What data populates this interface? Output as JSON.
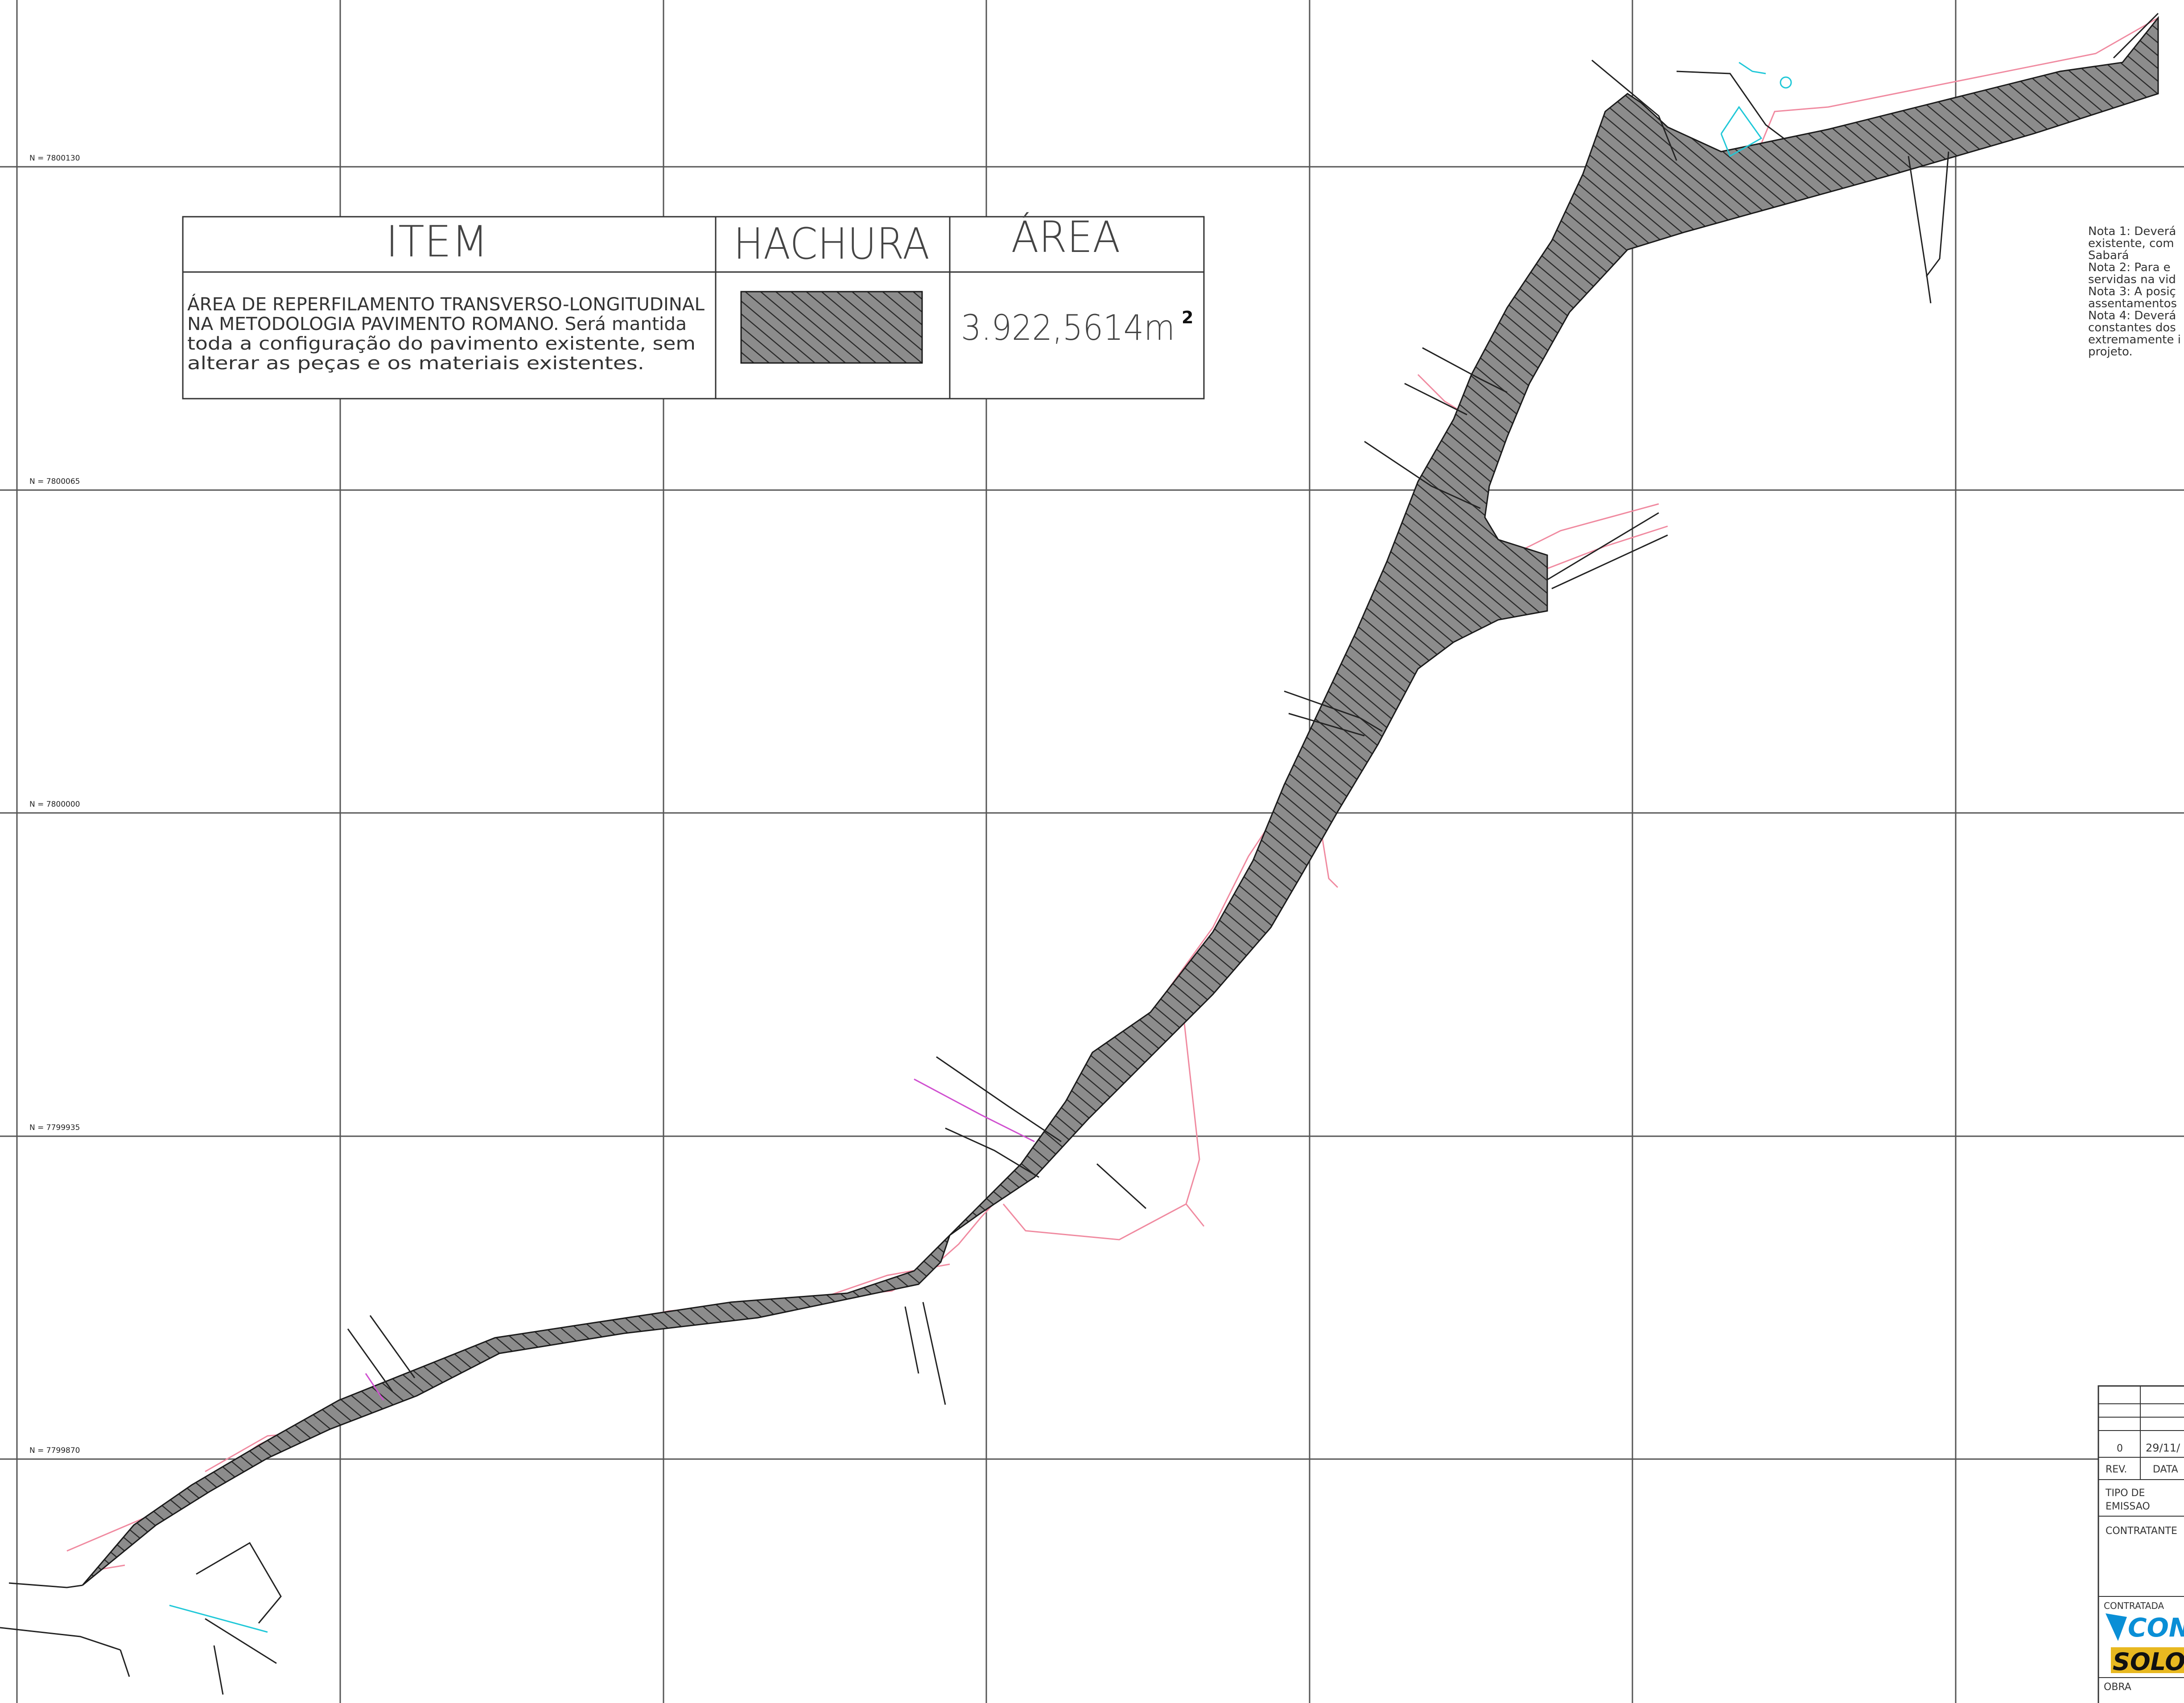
{
  "grid": {
    "northing_labels": [
      "N = 7800130",
      "N = 7800065",
      "N = 7800000",
      "N = 7799935",
      "N = 7799870"
    ]
  },
  "legend": {
    "headers": {
      "item": "ITEM",
      "hatch": "HACHURA",
      "area": "ÁREA"
    },
    "item_lines": [
      "ÁREA DE REPERFILAMENTO TRANSVERSO-LONGITUDINAL",
      "NA METODOLOGIA PAVIMENTO ROMANO. Será mantida",
      "toda a configuração do pavimento existente, sem",
      "alterar as peças e os materiais existentes."
    ],
    "area_value": "3.922,5614m",
    "area_unit_exponent": "2"
  },
  "notes": {
    "lines": [
      "Nota 1: Deverá",
      "existente, com",
      "Sabará",
      "Nota 2: Para e",
      "servidas na vid",
      "Nota 3: A posiç",
      "assentamentos",
      "Nota 4: Deverá",
      "constantes dos",
      "extremamente i",
      "projeto."
    ]
  },
  "title_block": {
    "rev_row": [
      "0",
      "29/11/"
    ],
    "rev_header": [
      "REV.",
      "DATA"
    ],
    "tipo_label_1": "TIPO DE",
    "tipo_label_2": "EMISSAO",
    "contratante_label": "CONTRATANTE",
    "contratada_label": "CONTRATADA",
    "logo_top_text": "CON",
    "logo_bottom_text": "SOLO",
    "obra_label": "OBRA"
  },
  "colors": {
    "hatch_fill": "#8c8c8c",
    "hatch_line": "#2a2a2a",
    "grid_line": "#555555",
    "offset_line": "#f08aa0",
    "cyan_line": "#20c8d8",
    "magenta_line": "#d050d0",
    "logo_blue": "#0a8fd6",
    "logo_yellow": "#e8b820"
  }
}
